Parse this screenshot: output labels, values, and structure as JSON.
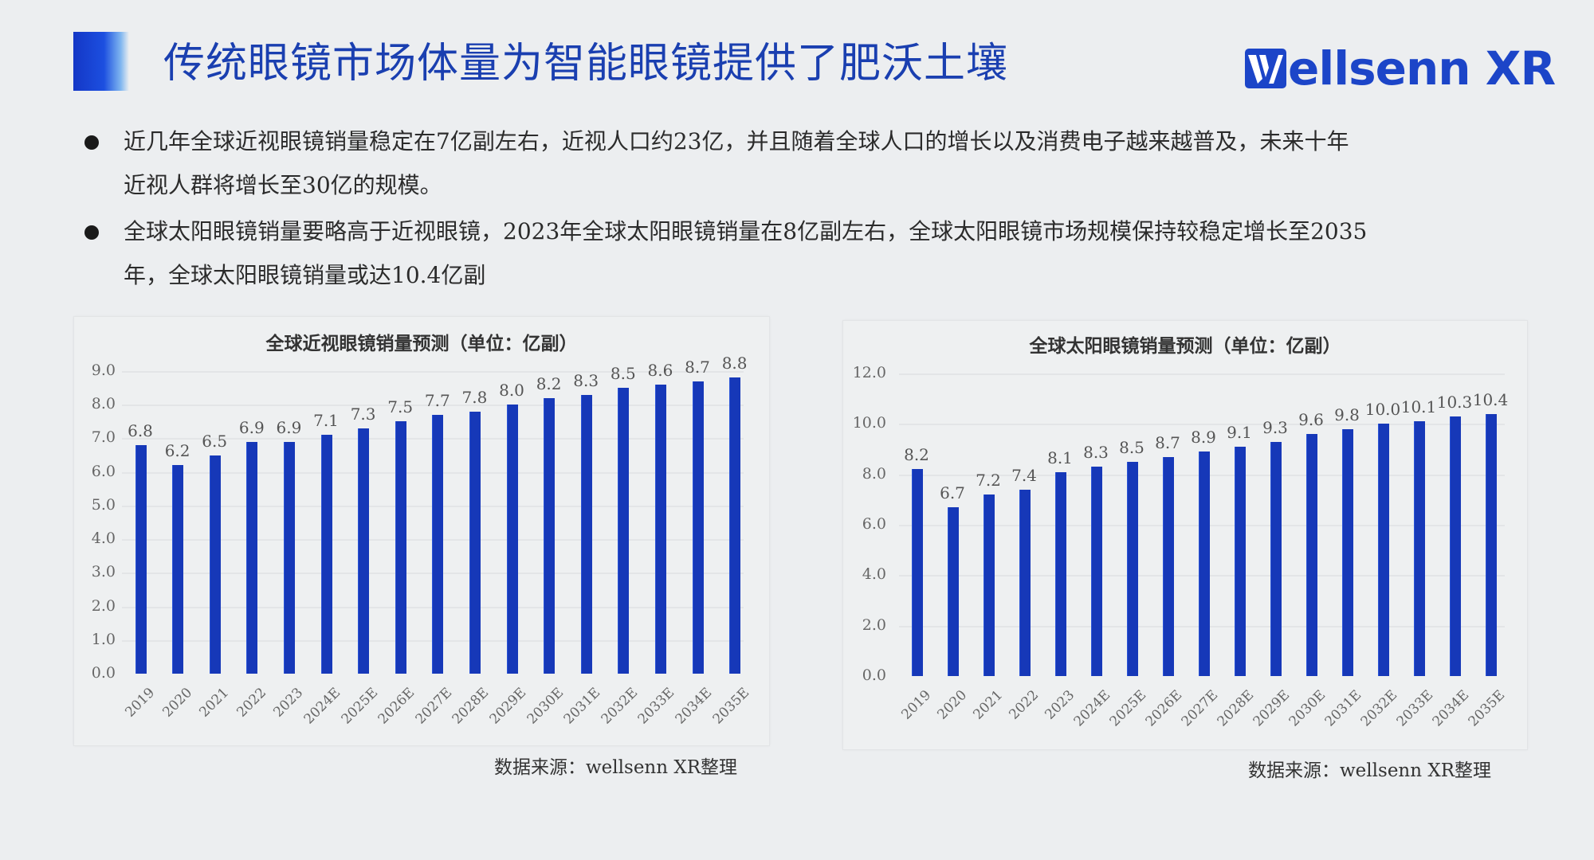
{
  "header": {
    "title": "传统眼镜市场体量为智能眼镜提供了肥沃土壤",
    "logo_text": "ellsenn XR",
    "logo_full": "Wellsenn XR",
    "accent_color": "#1c45c8"
  },
  "bullets": [
    {
      "text_line1": "近几年全球近视眼镜销量稳定在7亿副左右，近视人口约23亿，并且随着全球人口的增长以及消费电子越来越普及，未来十年",
      "text_line2": "近视人群将增长至30亿的规模。"
    },
    {
      "text_line1": "全球太阳眼镜销量要略高于近视眼镜，2023年全球太阳眼镜销量在8亿副左右，全球太阳眼镜市场规模保持较稳定增长至2035",
      "text_line2": "年，全球太阳眼镜销量或达10.4亿副"
    }
  ],
  "chart_data": [
    {
      "type": "bar",
      "title": "全球近视眼镜销量预测（单位：亿副）",
      "xlabel": "",
      "ylabel": "亿副",
      "categories": [
        "2019",
        "2020",
        "2021",
        "2022",
        "2023",
        "2024E",
        "2025E",
        "2026E",
        "2027E",
        "2028E",
        "2029E",
        "2030E",
        "2031E",
        "2032E",
        "2033E",
        "2034E",
        "2035E"
      ],
      "values": [
        6.8,
        6.2,
        6.5,
        6.9,
        6.9,
        7.1,
        7.3,
        7.5,
        7.7,
        7.8,
        8.0,
        8.2,
        8.3,
        8.5,
        8.6,
        8.7,
        8.8
      ],
      "labels": [
        "6.8",
        "6.2",
        "6.5",
        "6.9",
        "6.9",
        "7.1",
        "7.3",
        "7.5",
        "7.7",
        "7.8",
        "8.0",
        "8.2",
        "8.3",
        "8.5",
        "8.6",
        "8.7",
        "8.8"
      ],
      "yticks": [
        "0.0",
        "1.0",
        "2.0",
        "3.0",
        "4.0",
        "5.0",
        "6.0",
        "7.0",
        "8.0",
        "9.0"
      ],
      "ylim": [
        0,
        9
      ],
      "grid": true,
      "bar_color": "#1638b8",
      "source": "数据来源：wellsenn XR整理"
    },
    {
      "type": "bar",
      "title": "全球太阳眼镜销量预测（单位：亿副）",
      "xlabel": "",
      "ylabel": "亿副",
      "categories": [
        "2019",
        "2020",
        "2021",
        "2022",
        "2023",
        "2024E",
        "2025E",
        "2026E",
        "2027E",
        "2028E",
        "2029E",
        "2030E",
        "2031E",
        "2032E",
        "2033E",
        "2034E",
        "2035E"
      ],
      "values": [
        8.2,
        6.7,
        7.2,
        7.4,
        8.1,
        8.3,
        8.5,
        8.7,
        8.9,
        9.1,
        9.3,
        9.6,
        9.8,
        10.0,
        10.1,
        10.3,
        10.4
      ],
      "labels": [
        "8.2",
        "6.7",
        "7.2",
        "7.4",
        "8.1",
        "8.3",
        "8.5",
        "8.7",
        "8.9",
        "9.1",
        "9.3",
        "9.6",
        "9.8",
        "10.0",
        "10.1",
        "10.3",
        "10.4"
      ],
      "yticks": [
        "0.0",
        "2.0",
        "4.0",
        "6.0",
        "8.0",
        "10.0",
        "12.0"
      ],
      "ylim": [
        0,
        12
      ],
      "grid": true,
      "bar_color": "#1638b8",
      "source": "数据来源：wellsenn XR整理"
    }
  ]
}
